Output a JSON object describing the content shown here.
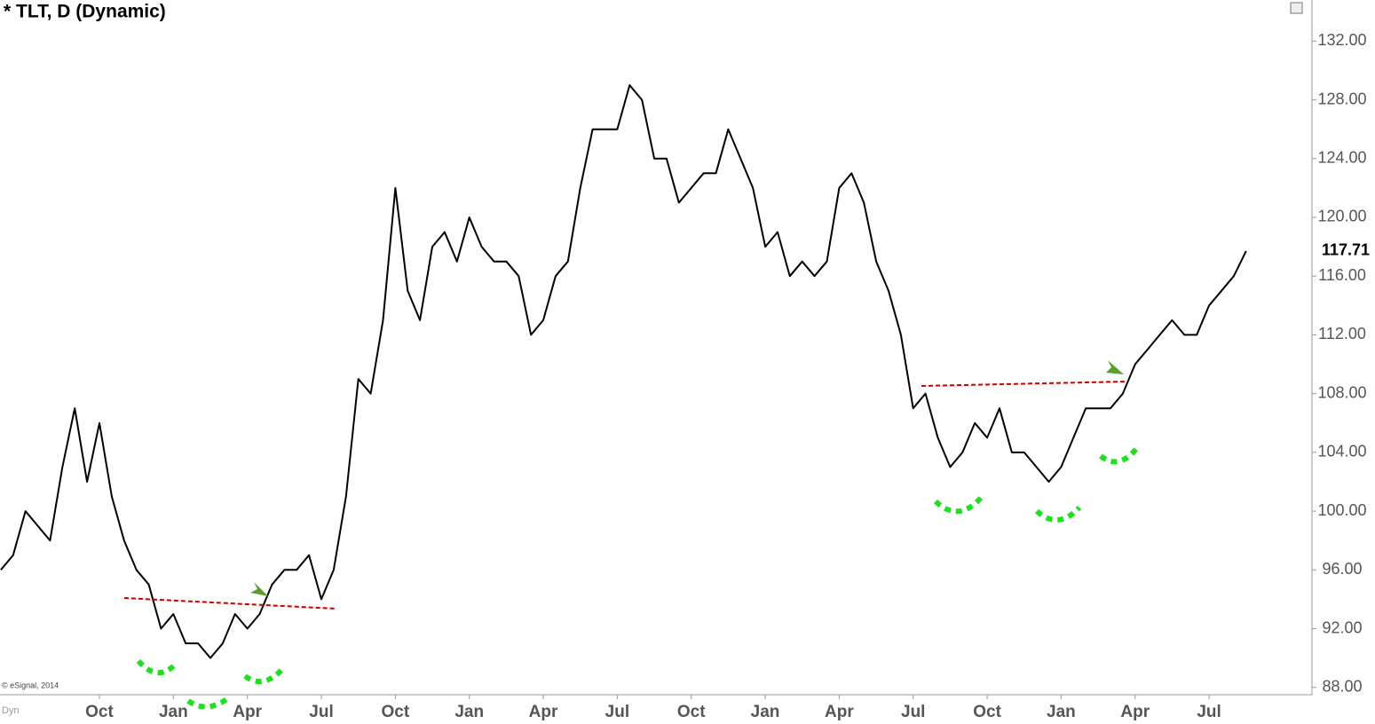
{
  "chart_data": {
    "type": "line",
    "title": "* TLT, D (Dynamic)",
    "copyright": "© eSignal, 2014",
    "mode_label": "Dyn",
    "color": "#000000",
    "categories": [
      null,
      null,
      null,
      null,
      null,
      null,
      null,
      null,
      "Oct",
      null,
      null,
      null,
      null,
      null,
      "Jan",
      null,
      null,
      null,
      null,
      null,
      "Apr",
      null,
      null,
      null,
      null,
      null,
      "Jul",
      null,
      null,
      null,
      null,
      null,
      "Oct",
      null,
      null,
      null,
      null,
      null,
      "Jan",
      null,
      null,
      null,
      null,
      null,
      "Apr",
      null,
      null,
      null,
      null,
      null,
      "Jul",
      null,
      null,
      null,
      null,
      null,
      "Oct",
      null,
      null,
      null,
      null,
      null,
      "Jan",
      null,
      null,
      null,
      null,
      null,
      "Apr",
      null,
      null,
      null,
      null,
      null,
      "Jul",
      null,
      null,
      null,
      null,
      null,
      "Oct",
      null,
      null,
      null,
      null,
      null,
      "Jan",
      null,
      null,
      null,
      null,
      null,
      "Apr",
      null,
      null,
      null,
      null,
      null,
      "Jul",
      null,
      null,
      null
    ],
    "values": [
      96,
      97,
      100,
      99,
      98,
      103,
      107,
      102,
      106,
      101,
      98,
      96,
      95,
      92,
      93,
      91,
      91,
      90,
      91,
      93,
      92,
      93,
      95,
      96,
      96,
      97,
      94,
      96,
      101,
      109,
      108,
      113,
      122,
      115,
      113,
      118,
      119,
      117,
      120,
      118,
      117,
      117,
      116,
      112,
      113,
      116,
      117,
      122,
      126,
      126,
      126,
      129,
      128,
      124,
      124,
      121,
      122,
      123,
      123,
      126,
      124,
      122,
      118,
      119,
      116,
      117,
      116,
      117,
      122,
      123,
      121,
      117,
      115,
      112,
      107,
      108,
      105,
      103,
      104,
      106,
      105,
      107,
      104,
      104,
      103,
      102,
      103,
      105,
      107,
      107,
      107,
      108,
      110,
      111,
      112,
      113,
      112,
      112,
      114,
      115,
      116,
      117.71
    ],
    "ylim": [
      87.5,
      134.8
    ],
    "yticks": [
      {
        "value": 88,
        "label": "88.00"
      },
      {
        "value": 92,
        "label": "92.00"
      },
      {
        "value": 96,
        "label": "96.00"
      },
      {
        "value": 100,
        "label": "100.00"
      },
      {
        "value": 104,
        "label": "104.00"
      },
      {
        "value": 108,
        "label": "108.00"
      },
      {
        "value": 112,
        "label": "112.00"
      },
      {
        "value": 116,
        "label": "116.00"
      },
      {
        "value": 120,
        "label": "120.00"
      },
      {
        "value": 124,
        "label": "124.00"
      },
      {
        "value": 128,
        "label": "128.00"
      },
      {
        "value": 132,
        "label": "132.00"
      }
    ],
    "grid": false
  }
}
